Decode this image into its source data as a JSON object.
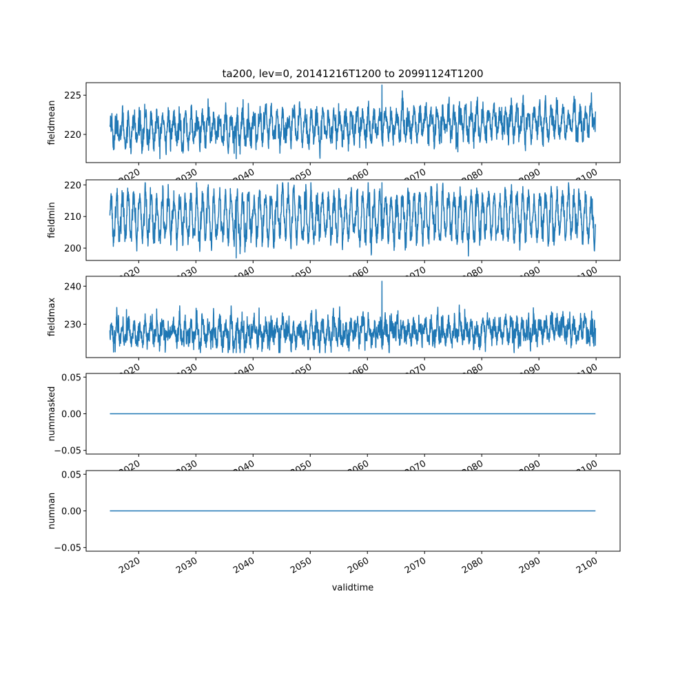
{
  "title": "ta200, lev=0, 20141216T1200 to 20991124T1200",
  "xlabel": "validtime",
  "x_tick_labels": [
    "2020",
    "2030",
    "2040",
    "2050",
    "2060",
    "2070",
    "2080",
    "2090",
    "2100"
  ],
  "colors": {
    "line": "#1f77b4",
    "axis": "#000000",
    "background": "#ffffff"
  },
  "chart_data": [
    {
      "type": "line",
      "name": "fieldmean",
      "ylabel": "fieldmean",
      "x_range": [
        "2014-12-16",
        "2099-11-24"
      ],
      "xlim": [
        2010.8,
        2104.2
      ],
      "ylim": [
        216.4,
        226.6
      ],
      "y_ticks": [
        220,
        225
      ],
      "y_tick_labels": [
        "220",
        "225"
      ],
      "signal": {
        "baseline_start": 220.5,
        "baseline_end": 221.8,
        "min": 216.9,
        "max": 226.3,
        "seasonal_amplitude": 1.6
      },
      "grid": false,
      "legend": "none"
    },
    {
      "type": "line",
      "name": "fieldmin",
      "ylabel": "fieldmin",
      "x_range": [
        "2014-12-16",
        "2099-11-24"
      ],
      "xlim": [
        2010.8,
        2104.2
      ],
      "ylim": [
        196.1,
        221.6
      ],
      "y_ticks": [
        200,
        210,
        220
      ],
      "y_tick_labels": [
        "200",
        "210",
        "220"
      ],
      "signal": {
        "baseline_start": 209.8,
        "baseline_end": 210.0,
        "min": 196.9,
        "max": 220.7,
        "seasonal_amplitude": 6.5
      },
      "grid": false,
      "legend": "none"
    },
    {
      "type": "line",
      "name": "fieldmax",
      "ylabel": "fieldmax",
      "x_range": [
        "2014-12-16",
        "2099-11-24"
      ],
      "xlim": [
        2010.8,
        2104.2
      ],
      "ylim": [
        221.2,
        242.6
      ],
      "y_ticks": [
        230,
        240
      ],
      "y_tick_labels": [
        "230",
        "240"
      ],
      "signal": {
        "baseline_start": 227.6,
        "baseline_end": 228.3,
        "min": 222.5,
        "max": 241.3,
        "seasonal_amplitude": 2.2
      },
      "grid": false,
      "legend": "none"
    },
    {
      "type": "line",
      "name": "nummasked",
      "ylabel": "nummasked",
      "x_range": [
        "2014-12-16",
        "2099-11-24"
      ],
      "xlim": [
        2010.8,
        2104.2
      ],
      "ylim": [
        -0.055,
        0.055
      ],
      "y_ticks": [
        -0.05,
        0.0,
        0.05
      ],
      "y_tick_labels": [
        "−0.05",
        "0.00",
        "0.05"
      ],
      "constant_value": 0.0,
      "grid": false,
      "legend": "none"
    },
    {
      "type": "line",
      "name": "numnan",
      "ylabel": "numnan",
      "x_range": [
        "2014-12-16",
        "2099-11-24"
      ],
      "xlim": [
        2010.8,
        2104.2
      ],
      "ylim": [
        -0.055,
        0.055
      ],
      "y_ticks": [
        -0.05,
        0.0,
        0.05
      ],
      "y_tick_labels": [
        "−0.05",
        "0.00",
        "0.05"
      ],
      "constant_value": 0.0,
      "grid": false,
      "legend": "none"
    }
  ]
}
